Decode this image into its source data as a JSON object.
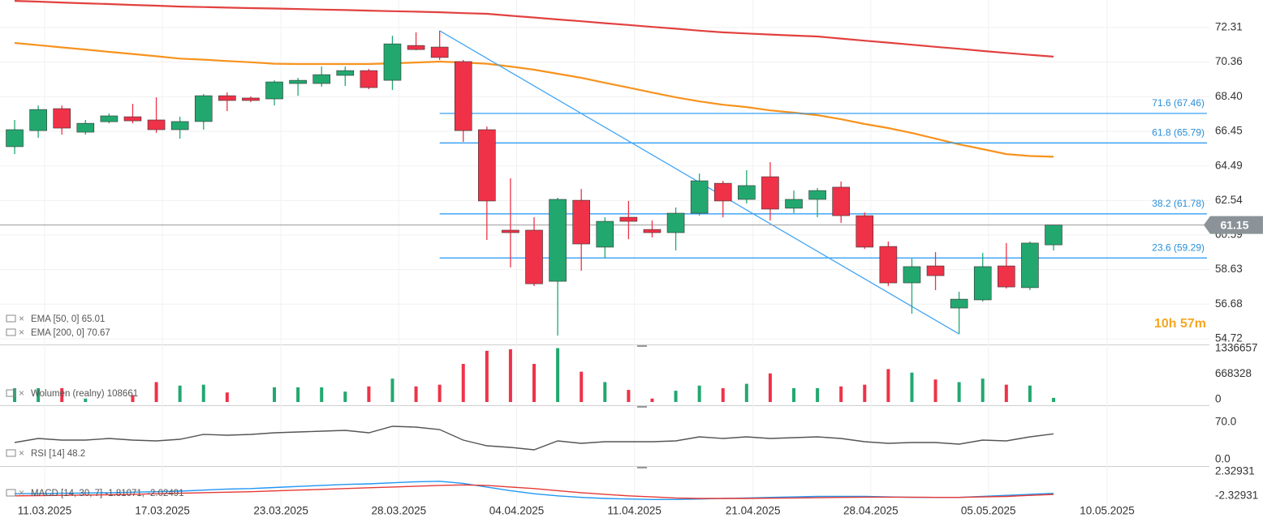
{
  "chart_data": {
    "type": "candlestick",
    "categories": [
      null,
      null,
      null,
      null,
      null,
      null,
      null,
      null,
      null,
      null,
      null,
      null,
      null,
      null,
      null,
      null,
      null,
      null,
      null,
      null,
      null,
      null,
      null,
      null,
      null,
      null,
      null,
      null,
      null,
      null,
      null,
      null,
      null,
      null,
      null,
      null,
      null,
      null,
      null,
      null,
      null,
      null,
      null,
      null,
      null
    ],
    "open": [
      65.58,
      66.49,
      67.73,
      66.4,
      66.99,
      67.27,
      67.09,
      66.54,
      67.0,
      68.46,
      68.33,
      68.28,
      69.15,
      69.15,
      69.61,
      69.88,
      69.33,
      71.3,
      71.21,
      70.39,
      66.54,
      60.86,
      60.86,
      57.97,
      62.55,
      59.9,
      61.59,
      60.9,
      60.72,
      61.82,
      63.51,
      62.6,
      63.88,
      62.1,
      62.6,
      63.29,
      61.68,
      59.94,
      57.88,
      58.84,
      56.46,
      56.92,
      58.84,
      57.61,
      60.03
    ],
    "high": [
      67.09,
      67.91,
      67.91,
      67.09,
      67.45,
      68.0,
      68.37,
      67.27,
      68.55,
      68.65,
      68.42,
      69.33,
      69.47,
      70.11,
      70.11,
      69.97,
      71.85,
      72.04,
      72.13,
      70.48,
      66.72,
      63.79,
      61.59,
      62.69,
      63.19,
      61.59,
      62.51,
      61.41,
      62.14,
      64.06,
      63.65,
      64.25,
      64.71,
      63.1,
      63.24,
      63.61,
      61.86,
      60.22,
      59.26,
      59.62,
      57.38,
      59.58,
      60.13,
      60.22,
      61.15
    ],
    "low": [
      65.16,
      66.08,
      66.26,
      66.26,
      66.9,
      66.9,
      66.36,
      66.03,
      66.54,
      67.59,
      68.1,
      67.91,
      68.46,
      68.97,
      69.01,
      68.83,
      68.78,
      71.03,
      70.48,
      65.85,
      60.31,
      58.75,
      57.7,
      54.9,
      58.57,
      59.26,
      60.35,
      60.45,
      59.71,
      61.68,
      61.59,
      62.37,
      61.41,
      61.82,
      61.59,
      61.27,
      59.8,
      57.7,
      56.14,
      57.47,
      54.99,
      56.83,
      57.56,
      57.47,
      59.71
    ],
    "close": [
      66.54,
      67.68,
      66.63,
      66.9,
      67.32,
      67.04,
      66.54,
      67.0,
      68.46,
      68.19,
      68.19,
      69.24,
      69.33,
      69.65,
      69.88,
      68.92,
      71.39,
      71.07,
      70.62,
      66.49,
      62.51,
      60.72,
      57.83,
      62.6,
      60.08,
      61.36,
      61.36,
      60.72,
      61.82,
      63.65,
      62.51,
      63.38,
      62.05,
      62.6,
      63.1,
      61.68,
      59.9,
      57.88,
      58.8,
      58.29,
      56.96,
      58.8,
      57.65,
      60.13,
      61.15
    ],
    "up_color": "#22a86f",
    "down_color": "#ef3248",
    "xlim": [
      -0.62,
      50.6
    ],
    "xticks": [
      {
        "value": 1.27,
        "label": "11.03.2025"
      },
      {
        "value": 6.26,
        "label": "17.03.2025"
      },
      {
        "value": 11.28,
        "label": "23.03.2025"
      },
      {
        "value": 16.27,
        "label": "28.03.2025"
      },
      {
        "value": 21.26,
        "label": "04.04.2025"
      },
      {
        "value": 26.25,
        "label": "11.04.2025"
      },
      {
        "value": 31.27,
        "label": "21.04.2025"
      },
      {
        "value": 36.26,
        "label": "28.04.2025"
      },
      {
        "value": 41.24,
        "label": "05.05.2025"
      },
      {
        "value": 46.27,
        "label": "10.05.2025"
      }
    ],
    "ylim": [
      54.4,
      73.87
    ],
    "yticks": [
      72.31,
      70.36,
      {
        "value": 68.4,
        "label": "68.40"
      },
      66.45,
      64.49,
      62.54,
      60.59,
      58.63,
      56.68,
      54.72
    ],
    "grid": true,
    "series": [
      {
        "name": "EMA [50, 0] 65.01",
        "color": "#f7931e",
        "values": [
          71.44,
          71.32,
          71.19,
          71.07,
          70.94,
          70.82,
          70.69,
          70.56,
          70.5,
          70.42,
          70.35,
          70.27,
          70.25,
          70.25,
          70.25,
          70.25,
          70.29,
          70.34,
          70.39,
          70.34,
          70.27,
          70.11,
          69.93,
          69.7,
          69.47,
          69.19,
          68.92,
          68.64,
          68.37,
          68.14,
          67.95,
          67.82,
          67.63,
          67.5,
          67.36,
          67.13,
          66.86,
          66.63,
          66.35,
          66.03,
          65.71,
          65.44,
          65.16,
          65.05,
          65.01
        ]
      },
      {
        "name": "EMA [200, 0] 70.67",
        "color": "#e2413f",
        "values": [
          73.82,
          73.78,
          73.73,
          73.68,
          73.64,
          73.59,
          73.55,
          73.5,
          73.47,
          73.44,
          73.41,
          73.39,
          73.36,
          73.33,
          73.3,
          73.27,
          73.24,
          73.21,
          73.18,
          73.13,
          73.09,
          72.98,
          72.88,
          72.77,
          72.67,
          72.56,
          72.46,
          72.35,
          72.25,
          72.14,
          72.04,
          71.98,
          71.92,
          71.86,
          71.81,
          71.69,
          71.57,
          71.46,
          71.34,
          71.22,
          71.11,
          70.99,
          70.88,
          70.77,
          70.67
        ]
      }
    ],
    "fib_color": "#2196f3",
    "fibonacci": [
      {
        "label": "71.6 (67.46)",
        "value": 67.46
      },
      {
        "label": "61.8 (65.79)",
        "value": 65.79
      },
      {
        "label": "38.2 (61.78)",
        "value": 61.78
      },
      {
        "label": "23.6 (59.29)",
        "value": 59.29
      }
    ],
    "trendline": [
      {
        "x": 18,
        "y": 72.13
      },
      {
        "x": 40,
        "y": 54.99
      }
    ],
    "last_price": 61.15,
    "timer": "10h 57m",
    "volume": {
      "name": "Wolumen  (realny)  108661",
      "ylim": [
        -84867,
        1506390
      ],
      "yticks": [
        1336657,
        668328,
        0
      ],
      "values": [
        362000,
        362000,
        362000,
        90000,
        0,
        181000,
        521000,
        430000,
        453000,
        249000,
        0,
        385000,
        385000,
        385000,
        272000,
        408000,
        612000,
        408000,
        453000,
        997000,
        1340000,
        1380000,
        997000,
        1410000,
        793000,
        521000,
        317000,
        90000,
        295000,
        430000,
        362000,
        476000,
        748000,
        362000,
        362000,
        408000,
        453000,
        861000,
        770000,
        589000,
        521000,
        612000,
        453000,
        430000,
        108661
      ]
    },
    "rsi": {
      "name": "RSI [14] 48.2",
      "color": "#555555",
      "ylim": [
        -12.17,
        101.96
      ],
      "yticks": [
        {
          "value": 70,
          "label": "70.0"
        },
        {
          "value": 0,
          "label": "0.0"
        }
      ],
      "values": [
        32.0,
        39.6,
        36.5,
        36.5,
        39.6,
        36.5,
        35.0,
        38.0,
        47.2,
        45.7,
        47.2,
        50.2,
        51.7,
        53.3,
        54.8,
        50.2,
        62.4,
        60.9,
        56.3,
        36.5,
        25.9,
        22.8,
        18.3,
        35.0,
        30.4,
        33.5,
        33.5,
        33.5,
        35.0,
        42.6,
        39.6,
        42.6,
        39.6,
        41.1,
        42.6,
        39.6,
        33.5,
        30.4,
        32.0,
        32.0,
        28.9,
        36.5,
        35.0,
        42.6,
        48.2
      ]
    },
    "macd": {
      "name": "MACD [14, 30, 7] -1.81071, -2.02491",
      "ylim": [
        -4.35,
        3.42
      ],
      "yticks": [
        2.32931,
        -2.32931
      ],
      "series": [
        {
          "color": "#2196f3",
          "values": [
            -1.9,
            -1.85,
            -1.8,
            -1.75,
            -1.7,
            -1.6,
            -1.5,
            -1.4,
            -1.2,
            -1.0,
            -0.9,
            -0.7,
            -0.5,
            -0.3,
            -0.1,
            0,
            0.2,
            0.4,
            0.5,
            0.1,
            -0.6,
            -1.3,
            -1.9,
            -2.3,
            -2.6,
            -2.8,
            -2.9,
            -3.0,
            -3.0,
            -2.9,
            -2.8,
            -2.7,
            -2.6,
            -2.5,
            -2.4,
            -2.4,
            -2.4,
            -2.5,
            -2.6,
            -2.6,
            -2.6,
            -2.4,
            -2.2,
            -2.0,
            -1.81071
          ]
        },
        {
          "color": "#e53935",
          "values": [
            -2.3,
            -2.25,
            -2.2,
            -2.15,
            -2.1,
            -2.0,
            -1.9,
            -1.8,
            -1.7,
            -1.6,
            -1.5,
            -1.35,
            -1.2,
            -1.05,
            -0.9,
            -0.75,
            -0.6,
            -0.45,
            -0.3,
            -0.2,
            -0.3,
            -0.6,
            -0.9,
            -1.3,
            -1.7,
            -2.0,
            -2.3,
            -2.5,
            -2.7,
            -2.8,
            -2.8,
            -2.8,
            -2.75,
            -2.7,
            -2.65,
            -2.6,
            -2.55,
            -2.55,
            -2.55,
            -2.6,
            -2.6,
            -2.5,
            -2.4,
            -2.2,
            -2.02491
          ]
        }
      ]
    }
  }
}
